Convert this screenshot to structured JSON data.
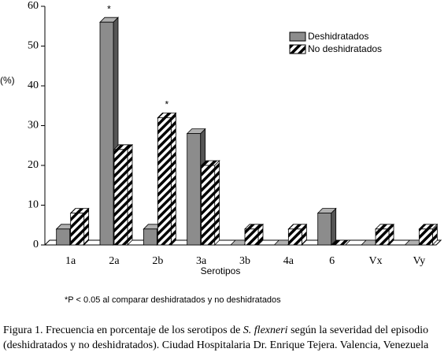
{
  "chart_data": {
    "type": "bar3d",
    "y_label": "(%)",
    "x_label": "Serotipos",
    "categories": [
      "1a",
      "2a",
      "2b",
      "3a",
      "3b",
      "4a",
      "6",
      "Vx",
      "Vy"
    ],
    "series": [
      {
        "name": "Deshidratados",
        "color": "#8c8c8c",
        "values": [
          4,
          56,
          4,
          28,
          0,
          0,
          8,
          0,
          0
        ]
      },
      {
        "name": "No deshidratados",
        "color": "#000000",
        "pattern": "diagonal",
        "values": [
          8,
          24,
          32,
          20,
          4,
          4,
          0,
          4,
          4
        ]
      }
    ],
    "annotations": [
      "*",
      "*"
    ],
    "ylim": [
      0,
      60
    ],
    "yticks": [
      0,
      10,
      20,
      30,
      40,
      50,
      60
    ],
    "footnote": "*P < 0.05 al comparar deshidratados y no deshidratados",
    "caption": {
      "line1_start": "Figura 1. Frecuencia en porcentaje de los serotipos de ",
      "line1_italic": "S. flexneri",
      "line1_end": " según la severidad del episodio",
      "line2": "(deshidratados y no deshidratados). Ciudad Hospitalaria Dr. Enrique Tejera. Valencia, Venezuela"
    }
  }
}
